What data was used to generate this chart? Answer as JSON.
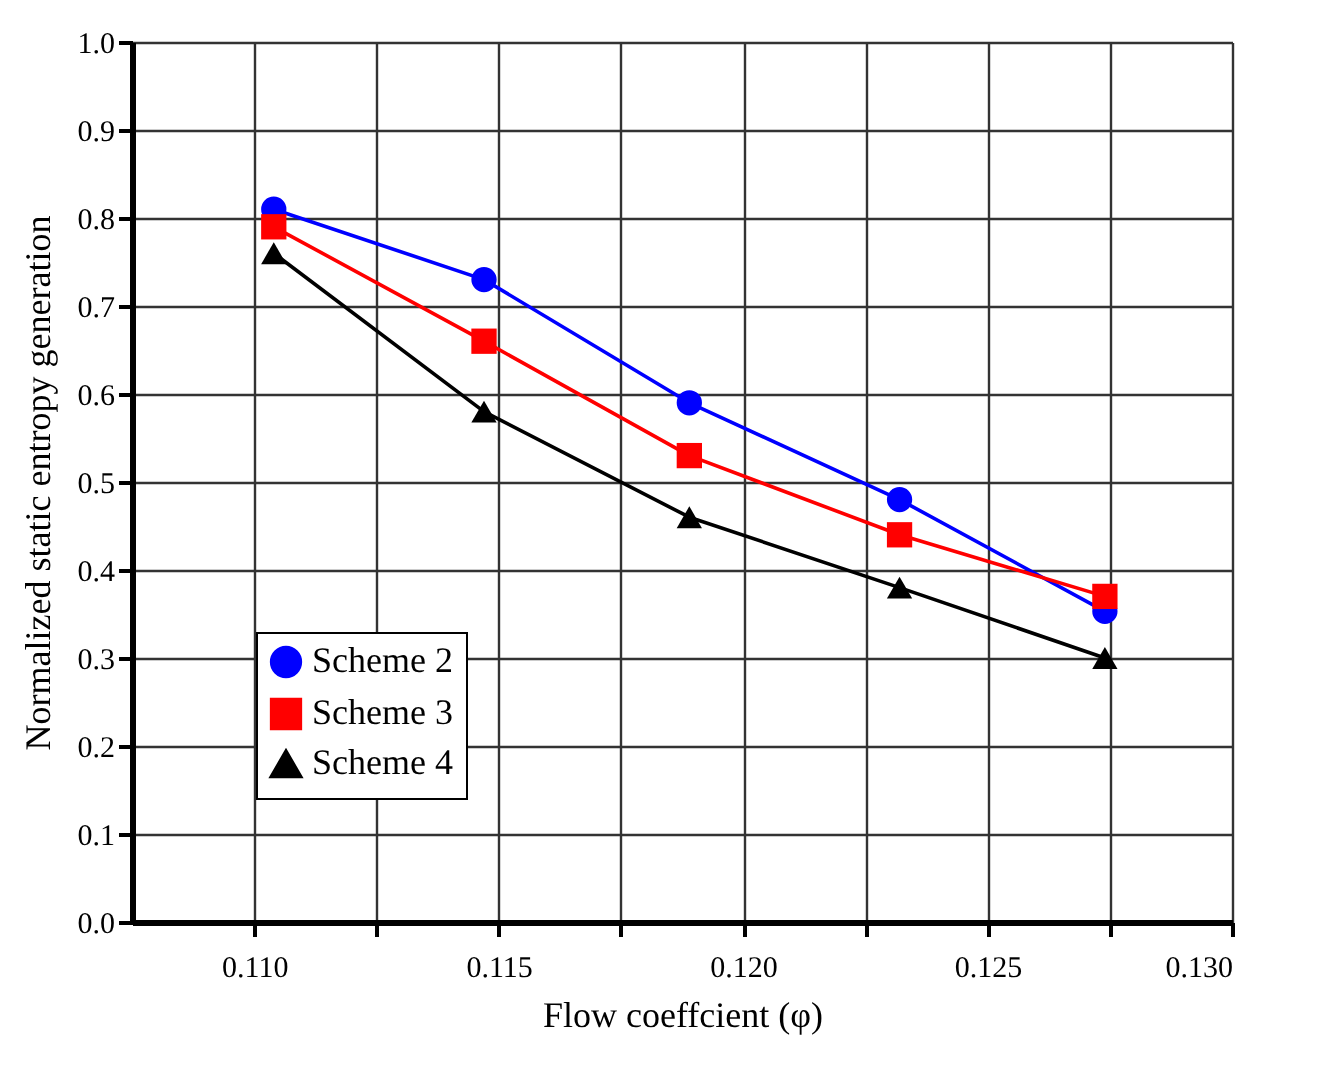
{
  "chart_data": {
    "type": "line",
    "xlabel": "Flow coeffcient (φ)",
    "ylabel": "Normalized static entropy generation",
    "x": [
      0.1104,
      0.1147,
      0.1189,
      0.1232,
      0.1274
    ],
    "series": [
      {
        "name": "Scheme 2",
        "color": "#0000ff",
        "marker": "circle",
        "values": [
          0.81,
          0.73,
          0.59,
          0.48,
          0.353
        ]
      },
      {
        "name": "Scheme 3",
        "color": "#ff0000",
        "marker": "square",
        "values": [
          0.79,
          0.66,
          0.53,
          0.44,
          0.37
        ]
      },
      {
        "name": "Scheme 4",
        "color": "#000000",
        "marker": "triangle",
        "values": [
          0.76,
          0.58,
          0.46,
          0.38,
          0.3
        ]
      }
    ],
    "xlim": [
      0.1075,
      0.13
    ],
    "xticks": [
      {
        "value": 0.11,
        "label": "0.110"
      },
      {
        "value": 0.1125,
        "label": null
      },
      {
        "value": 0.115,
        "label": "0.115"
      },
      {
        "value": 0.1175,
        "label": null
      },
      {
        "value": 0.12,
        "label": "0.120"
      },
      {
        "value": 0.1225,
        "label": null
      },
      {
        "value": 0.125,
        "label": "0.125"
      },
      {
        "value": 0.1275,
        "label": null
      },
      {
        "value": 0.13,
        "label": "0.130"
      }
    ],
    "ylim": [
      0,
      1
    ],
    "yticks": [
      {
        "value": 0,
        "label": "0.0"
      },
      0.1,
      0.2,
      0.3,
      0.4,
      0.5,
      0.6,
      0.7,
      0.8,
      0.9,
      {
        "value": 1,
        "label": "1.0"
      }
    ],
    "grid": true,
    "legend": "bottom left",
    "line_style": "solid"
  }
}
